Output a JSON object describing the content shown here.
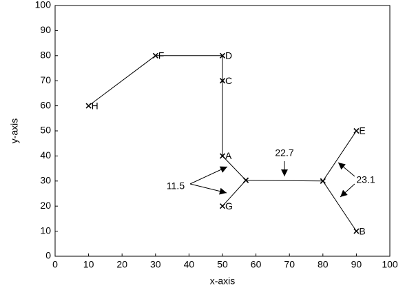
{
  "chart_data": {
    "type": "line",
    "x_label": "x-axis",
    "y_label": "y-axis",
    "xlim": [
      0,
      100
    ],
    "ylim": [
      0,
      100
    ],
    "xticks": [
      0,
      10,
      20,
      30,
      40,
      50,
      60,
      70,
      80,
      90,
      100
    ],
    "yticks": [
      0,
      10,
      20,
      30,
      40,
      50,
      60,
      70,
      80,
      90,
      100
    ],
    "color": "#000000",
    "series": [
      {
        "x": [
          10,
          30,
          50,
          50,
          50,
          57,
          50
        ],
        "values": [
          60,
          80,
          80,
          70,
          40,
          30.3,
          20
        ],
        "point_labels": [
          "H",
          "F",
          "D",
          "C",
          "A",
          null,
          "G"
        ]
      },
      {
        "x": [
          57,
          80,
          90
        ],
        "values": [
          30.3,
          30,
          50
        ],
        "point_labels": [
          null,
          null,
          "E"
        ]
      },
      {
        "x": [
          80,
          90
        ],
        "values": [
          30,
          10
        ],
        "point_labels": [
          null,
          "B"
        ]
      }
    ],
    "annotations": [
      "11.5",
      "22.7",
      "23.1"
    ]
  }
}
